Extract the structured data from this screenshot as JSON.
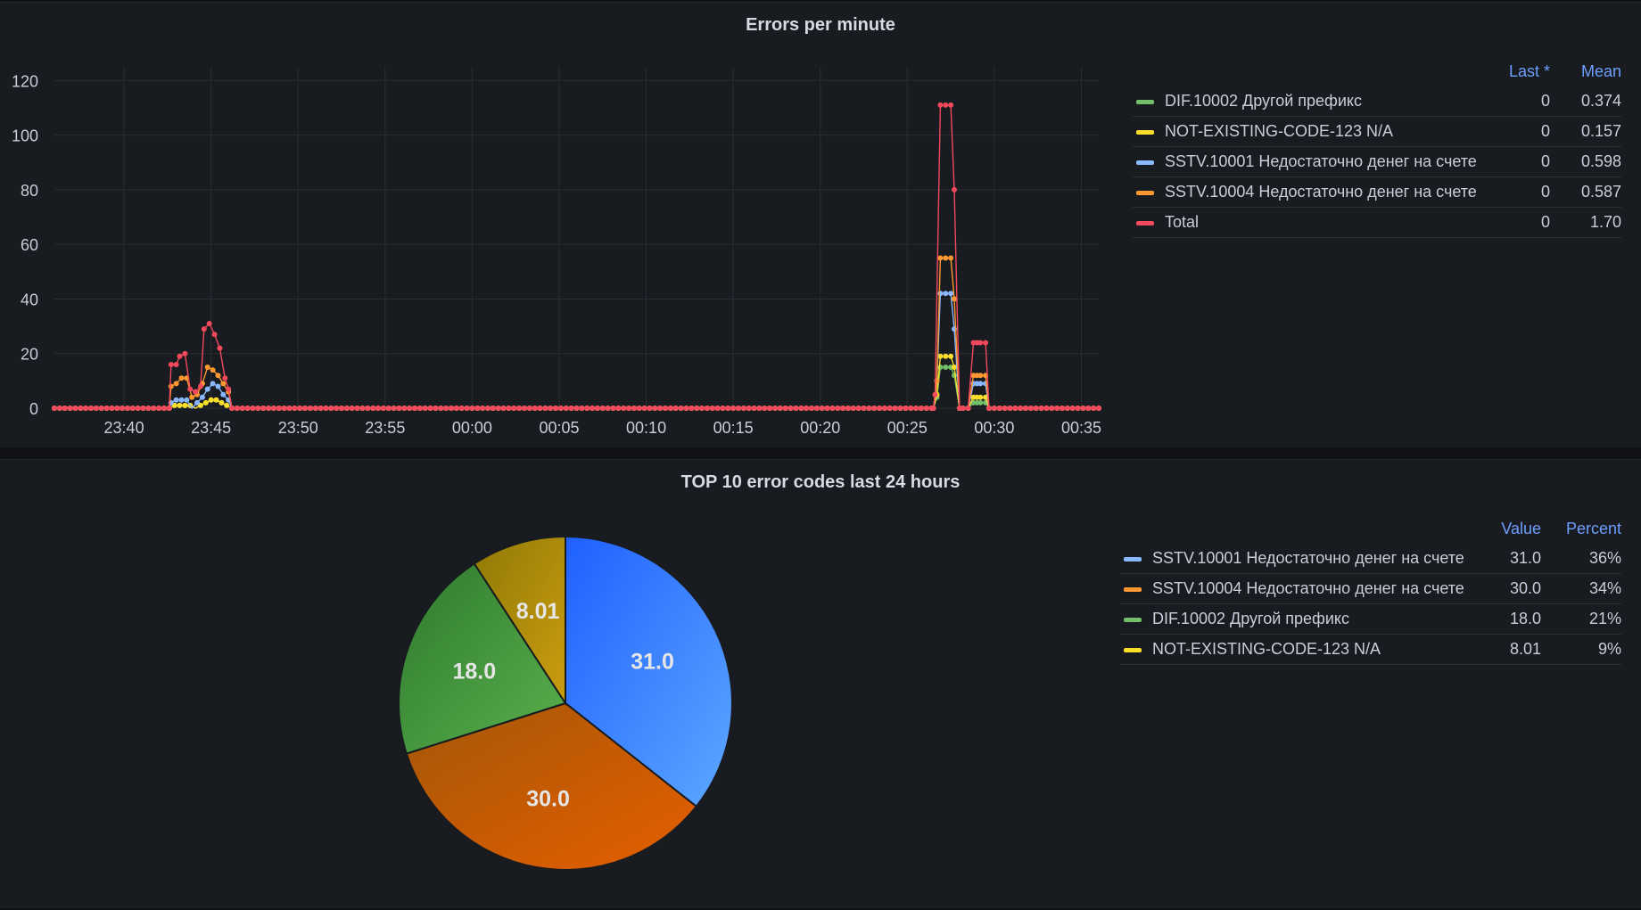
{
  "timeseries_panel": {
    "title": "Errors per minute",
    "legend": {
      "headers": {
        "last": "Last *",
        "mean": "Mean"
      },
      "items": [
        {
          "name": "DIF.10002 Другой префикс",
          "last": "0",
          "mean": "0.374",
          "color": "#73bf69"
        },
        {
          "name": "NOT-EXISTING-CODE-123 N/A",
          "last": "0",
          "mean": "0.157",
          "color": "#fade2a"
        },
        {
          "name": "SSTV.10001 Недостаточно денег на счете",
          "last": "0",
          "mean": "0.598",
          "color": "#8ab8ff"
        },
        {
          "name": "SSTV.10004 Недостаточно денег на счете",
          "last": "0",
          "mean": "0.587",
          "color": "#ff9830"
        },
        {
          "name": "Total",
          "last": "0",
          "mean": "1.70",
          "color": "#f2495c"
        }
      ]
    }
  },
  "pie_panel": {
    "title": "TOP 10 error codes last 24 hours",
    "legend": {
      "headers": {
        "value": "Value",
        "percent": "Percent"
      },
      "items": [
        {
          "name": "SSTV.10001 Недостаточно денег на счете",
          "value": "31.0",
          "percent": "36%",
          "color": "#8ab8ff"
        },
        {
          "name": "SSTV.10004 Недостаточно денег на счете",
          "value": "30.0",
          "percent": "34%",
          "color": "#ff9830"
        },
        {
          "name": "DIF.10002 Другой префикс",
          "value": "18.0",
          "percent": "21%",
          "color": "#73bf69"
        },
        {
          "name": "NOT-EXISTING-CODE-123 N/A",
          "value": "8.01",
          "percent": "9%",
          "color": "#fade2a"
        }
      ]
    }
  },
  "chart_data": [
    {
      "type": "line",
      "title": "Errors per minute",
      "xlabel": "",
      "ylabel": "",
      "x_ticks": [
        "23:40",
        "23:45",
        "23:50",
        "23:55",
        "00:00",
        "00:05",
        "00:10",
        "00:15",
        "00:20",
        "00:25",
        "00:30",
        "00:35"
      ],
      "y_ticks": [
        0,
        20,
        40,
        60,
        80,
        100,
        120
      ],
      "ylim": [
        0,
        125
      ],
      "xlim_minutes": [
        0,
        60
      ],
      "x_start": "23:36",
      "grid": true,
      "legend_position": "right",
      "series": [
        {
          "name": "DIF.10002 Другой префикс",
          "color": "#73bf69",
          "points": [
            [
              6.6,
              0
            ],
            [
              6.9,
              1
            ],
            [
              7.2,
              1
            ],
            [
              7.5,
              1
            ],
            [
              7.8,
              1
            ],
            [
              8.1,
              0
            ],
            [
              8.4,
              1
            ],
            [
              8.7,
              2
            ],
            [
              9.0,
              3
            ],
            [
              9.3,
              3
            ],
            [
              9.6,
              2
            ],
            [
              9.9,
              1
            ],
            [
              10.2,
              0
            ],
            [
              50.5,
              0
            ],
            [
              50.7,
              4
            ],
            [
              50.9,
              15
            ],
            [
              51.2,
              15
            ],
            [
              51.5,
              15
            ],
            [
              51.7,
              12
            ],
            [
              52.0,
              0
            ],
            [
              52.5,
              0
            ],
            [
              52.8,
              2
            ],
            [
              53.0,
              2
            ],
            [
              53.2,
              2
            ],
            [
              53.5,
              2
            ],
            [
              53.7,
              0
            ]
          ]
        },
        {
          "name": "NOT-EXISTING-CODE-123 N/A",
          "color": "#fade2a",
          "points": [
            [
              6.6,
              0
            ],
            [
              6.9,
              1
            ],
            [
              7.2,
              1
            ],
            [
              7.5,
              1
            ],
            [
              7.8,
              1
            ],
            [
              8.1,
              0
            ],
            [
              8.4,
              1
            ],
            [
              8.7,
              2
            ],
            [
              9.0,
              3
            ],
            [
              9.3,
              3
            ],
            [
              9.6,
              2
            ],
            [
              9.9,
              1
            ],
            [
              10.2,
              0
            ],
            [
              50.5,
              0
            ],
            [
              50.7,
              5
            ],
            [
              50.9,
              19
            ],
            [
              51.2,
              19
            ],
            [
              51.5,
              19
            ],
            [
              51.7,
              15
            ],
            [
              52.0,
              0
            ],
            [
              52.5,
              0
            ],
            [
              52.8,
              4
            ],
            [
              53.0,
              4
            ],
            [
              53.2,
              4
            ],
            [
              53.5,
              4
            ],
            [
              53.7,
              0
            ]
          ]
        },
        {
          "name": "SSTV.10001 Недостаточно денег на счете",
          "color": "#8ab8ff",
          "points": [
            [
              6.6,
              0
            ],
            [
              6.7,
              2
            ],
            [
              7.0,
              3
            ],
            [
              7.3,
              3
            ],
            [
              7.6,
              3
            ],
            [
              7.9,
              0
            ],
            [
              8.2,
              2
            ],
            [
              8.5,
              4
            ],
            [
              8.8,
              7
            ],
            [
              9.1,
              9
            ],
            [
              9.4,
              8
            ],
            [
              9.7,
              5
            ],
            [
              10.0,
              3
            ],
            [
              10.2,
              0
            ],
            [
              50.5,
              0
            ],
            [
              50.7,
              10
            ],
            [
              50.9,
              42
            ],
            [
              51.2,
              42
            ],
            [
              51.5,
              42
            ],
            [
              51.7,
              29
            ],
            [
              52.0,
              0
            ],
            [
              52.5,
              0
            ],
            [
              52.8,
              9
            ],
            [
              53.0,
              9
            ],
            [
              53.2,
              9
            ],
            [
              53.5,
              9
            ],
            [
              53.7,
              0
            ]
          ]
        },
        {
          "name": "SSTV.10004 Недостаточно денег на счете",
          "color": "#ff9830",
          "points": [
            [
              6.6,
              0
            ],
            [
              6.7,
              8
            ],
            [
              7.0,
              9
            ],
            [
              7.3,
              11
            ],
            [
              7.6,
              11
            ],
            [
              7.9,
              4
            ],
            [
              8.2,
              5
            ],
            [
              8.5,
              9
            ],
            [
              8.8,
              15
            ],
            [
              9.1,
              14
            ],
            [
              9.4,
              12
            ],
            [
              9.7,
              9
            ],
            [
              10.0,
              6
            ],
            [
              10.2,
              0
            ],
            [
              50.5,
              0
            ],
            [
              50.7,
              10
            ],
            [
              50.9,
              55
            ],
            [
              51.2,
              55
            ],
            [
              51.5,
              55
            ],
            [
              51.7,
              40
            ],
            [
              52.0,
              0
            ],
            [
              52.5,
              0
            ],
            [
              52.8,
              12
            ],
            [
              53.0,
              12
            ],
            [
              53.2,
              12
            ],
            [
              53.5,
              12
            ],
            [
              53.7,
              0
            ]
          ]
        },
        {
          "name": "Total",
          "color": "#f2495c",
          "points": [
            [
              6.6,
              0
            ],
            [
              6.7,
              16
            ],
            [
              7.0,
              16
            ],
            [
              7.2,
              19
            ],
            [
              7.5,
              20
            ],
            [
              7.8,
              7
            ],
            [
              8.1,
              6
            ],
            [
              8.4,
              8
            ],
            [
              8.6,
              29
            ],
            [
              8.9,
              31
            ],
            [
              9.2,
              27
            ],
            [
              9.5,
              22
            ],
            [
              9.8,
              11
            ],
            [
              10.0,
              7
            ],
            [
              10.2,
              0
            ],
            [
              50.5,
              0
            ],
            [
              50.6,
              5
            ],
            [
              50.9,
              111
            ],
            [
              51.2,
              111
            ],
            [
              51.5,
              111
            ],
            [
              51.7,
              80
            ],
            [
              52.0,
              0
            ],
            [
              52.5,
              0
            ],
            [
              52.8,
              24
            ],
            [
              53.0,
              24
            ],
            [
              53.2,
              24
            ],
            [
              53.5,
              24
            ],
            [
              53.7,
              0
            ],
            [
              60.0,
              0
            ]
          ]
        }
      ]
    },
    {
      "type": "pie",
      "title": "TOP 10 error codes last 24 hours",
      "slices": [
        {
          "name": "SSTV.10001 Недостаточно денег на счете",
          "value": 31.0,
          "label": "31.0",
          "colors": [
            "#1f60ff",
            "#5ca8ff"
          ]
        },
        {
          "name": "SSTV.10004 Недостаточно денег на счете",
          "value": 30.0,
          "label": "30.0",
          "colors": [
            "#a35708",
            "#e65e00"
          ]
        },
        {
          "name": "DIF.10002 Другой префикс",
          "value": 18.0,
          "label": "18.0",
          "colors": [
            "#2e7a2e",
            "#5bb04d"
          ]
        },
        {
          "name": "NOT-EXISTING-CODE-123 N/A",
          "value": 8.01,
          "label": "8.01",
          "colors": [
            "#8f7a06",
            "#cc9d0f"
          ]
        }
      ],
      "legend_position": "right"
    }
  ]
}
